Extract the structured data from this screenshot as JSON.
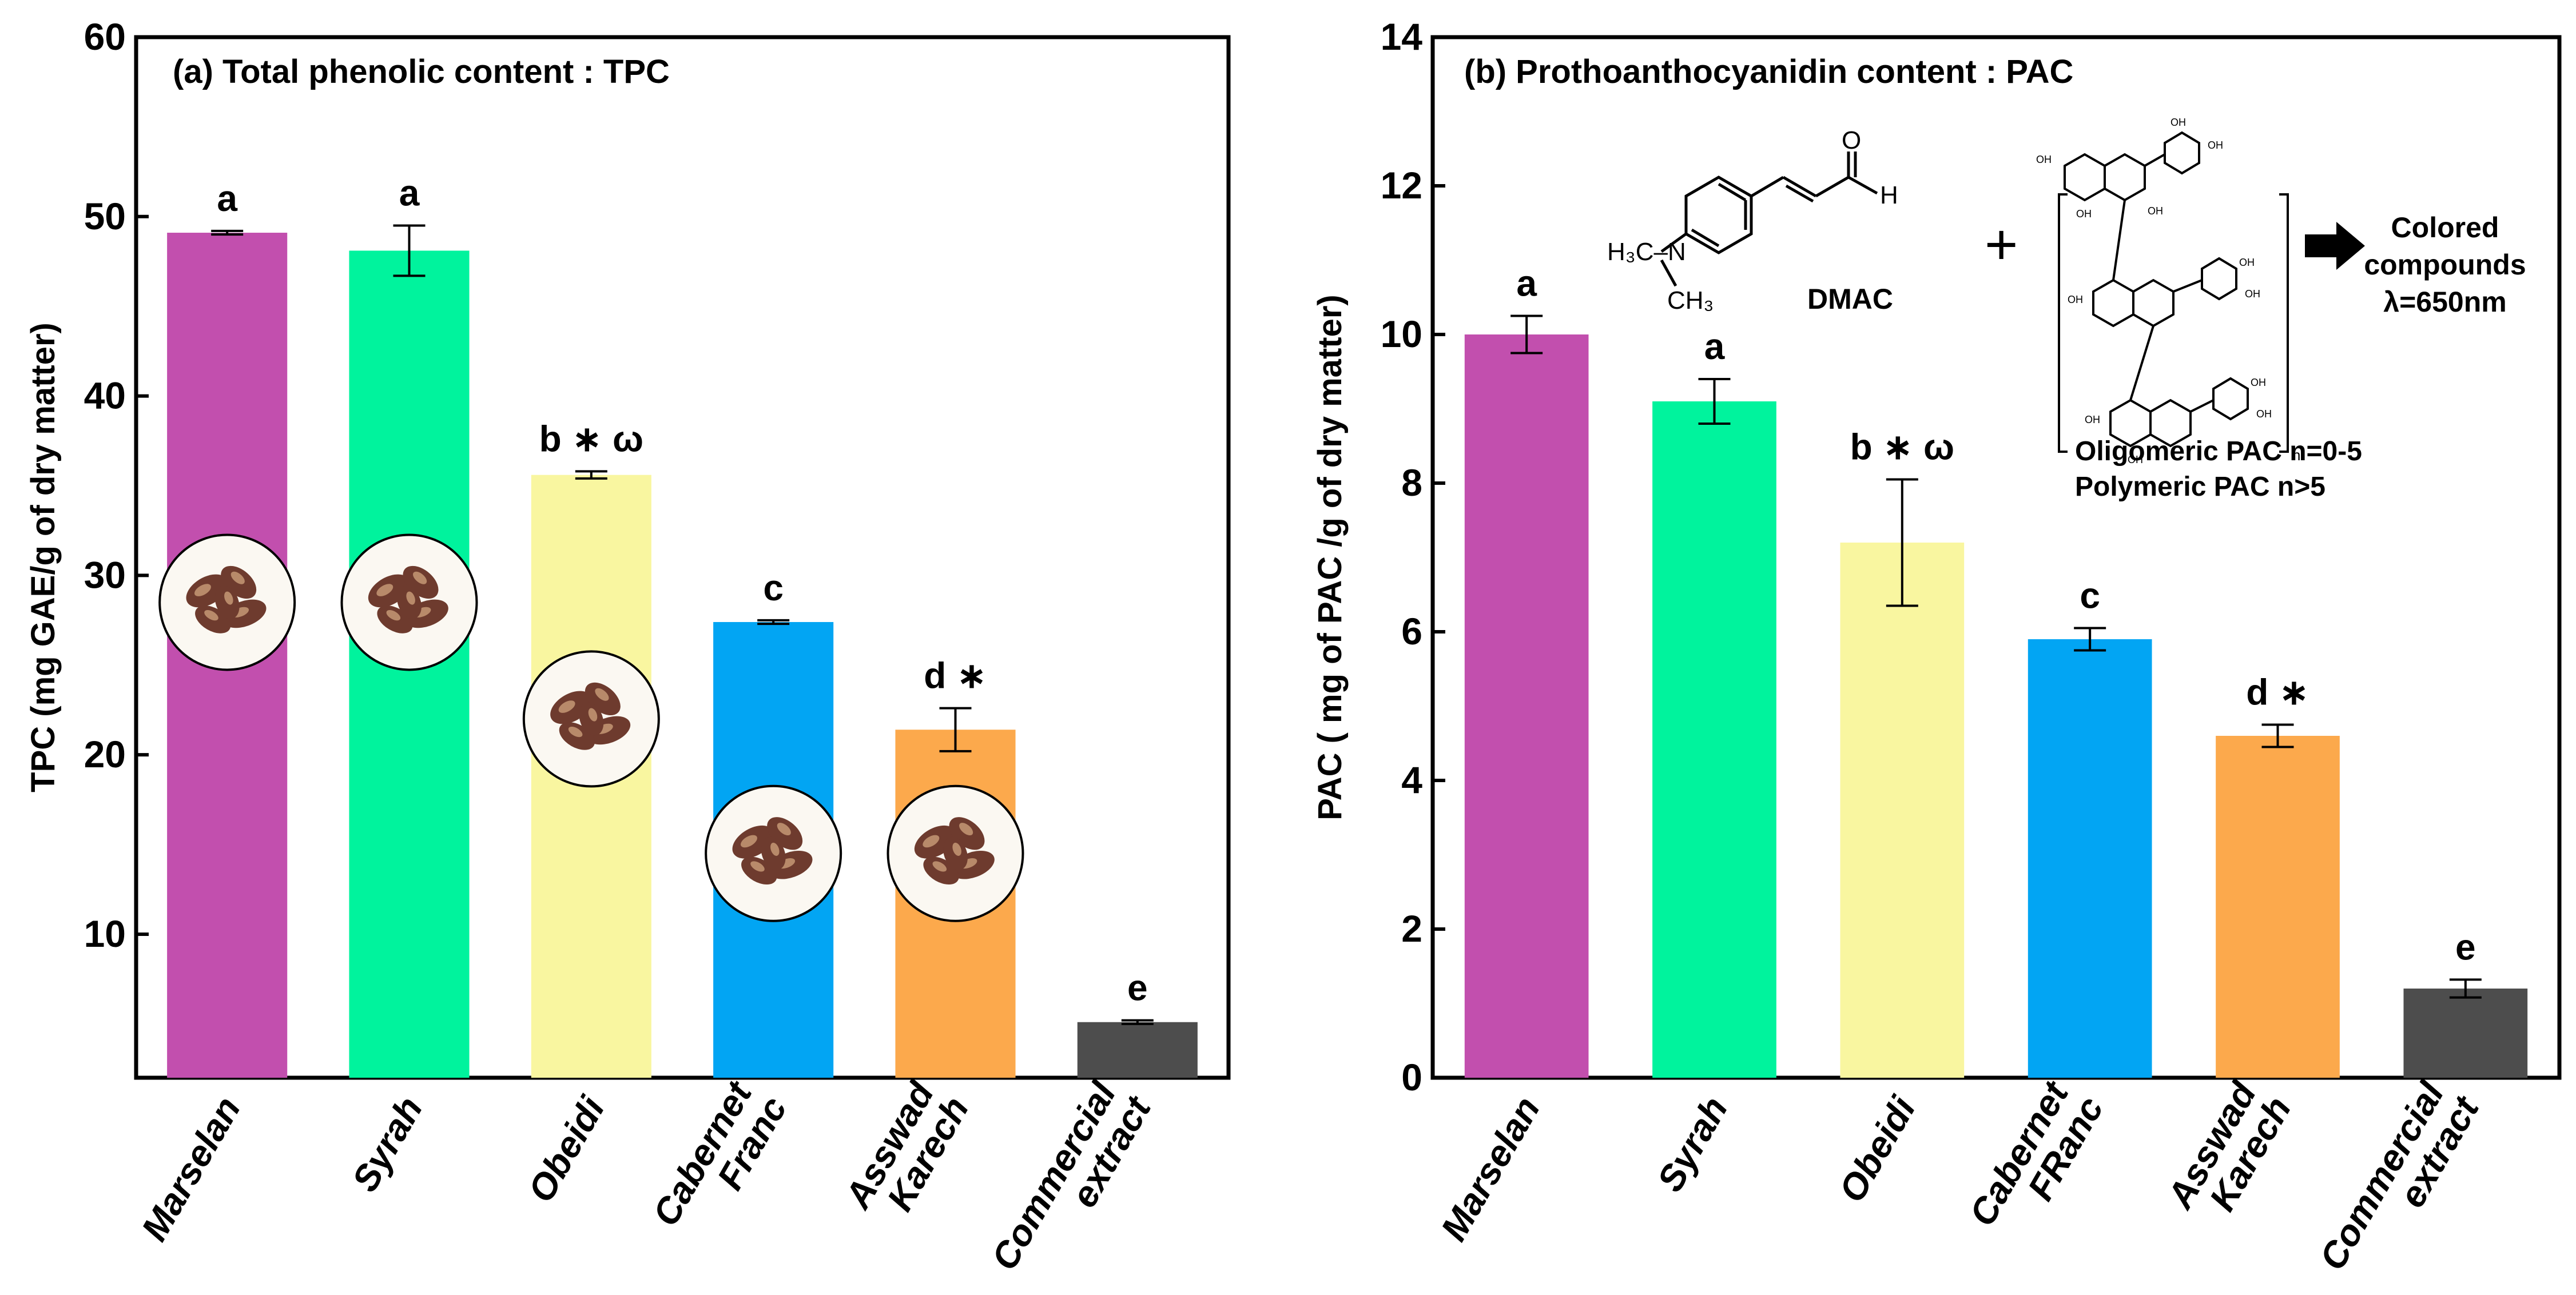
{
  "chart_data": [
    {
      "type": "bar",
      "title": "(a) Total phenolic content : TPC",
      "ylabel": "TPC (mg GAE/g of dry matter)",
      "xlabel": "",
      "ylim": [
        2,
        60
      ],
      "yticks": [
        10,
        20,
        30,
        40,
        50,
        60
      ],
      "categories": [
        [
          "Marselan"
        ],
        [
          "Syrah"
        ],
        [
          "Obeidi"
        ],
        [
          "Cabernet",
          "Franc"
        ],
        [
          "Asswad",
          "Karech"
        ],
        [
          "Commercial",
          "extract"
        ]
      ],
      "values": [
        49.1,
        48.1,
        35.6,
        27.4,
        21.4,
        5.1
      ],
      "errors": [
        0.1,
        1.4,
        0.2,
        0.1,
        1.2,
        0.1
      ],
      "labels": [
        "a",
        "a",
        "b ∗ ω",
        "c",
        "d ∗",
        "e"
      ],
      "colors": [
        "#c24fae",
        "#00f39d",
        "#f9f6a0",
        "#02a5f3",
        "#fca94c",
        "#4d4d4d"
      ],
      "seed_photos": true
    },
    {
      "type": "bar",
      "title": "(b) Prothoanthocyanidin content : PAC",
      "ylabel": "PAC ( mg of PAC /g of dry matter)",
      "xlabel": "",
      "ylim": [
        0,
        14
      ],
      "yticks": [
        0,
        2,
        4,
        6,
        8,
        10,
        12,
        14
      ],
      "categories": [
        [
          "Marselan"
        ],
        [
          "Syrah"
        ],
        [
          "Obeidi"
        ],
        [
          "Cabernet",
          "FRanc"
        ],
        [
          "Asswad",
          "Karech"
        ],
        [
          "Commercial",
          "extract"
        ]
      ],
      "values": [
        10.0,
        9.1,
        7.2,
        5.9,
        4.6,
        1.2
      ],
      "errors": [
        0.25,
        0.3,
        0.85,
        0.15,
        0.15,
        0.12
      ],
      "labels": [
        "a",
        "a",
        "b ∗ ω",
        "c",
        "d ∗",
        "e"
      ],
      "colors": [
        "#c24fae",
        "#00f39d",
        "#f9f6a0",
        "#02a5f3",
        "#fca94c",
        "#4d4d4d"
      ]
    }
  ],
  "scheme": {
    "dmac_label": "DMAC",
    "plus": "+",
    "amine_group_1": "H₃C–N",
    "amine_group_2": "CH₃",
    "aldehyde_o": "O",
    "aldehyde_h": "H",
    "n_label": "n",
    "result_line1": "Colored",
    "result_line2": "compounds",
    "result_line3": "λ=650nm",
    "oligomeric": "Oligomeric PAC n=0-5",
    "polymeric": "Polymeric PAC n>5",
    "oh": "OH"
  },
  "colors": {
    "axis": "#000000",
    "error_bar": "#000000",
    "arrow": "#000000"
  }
}
